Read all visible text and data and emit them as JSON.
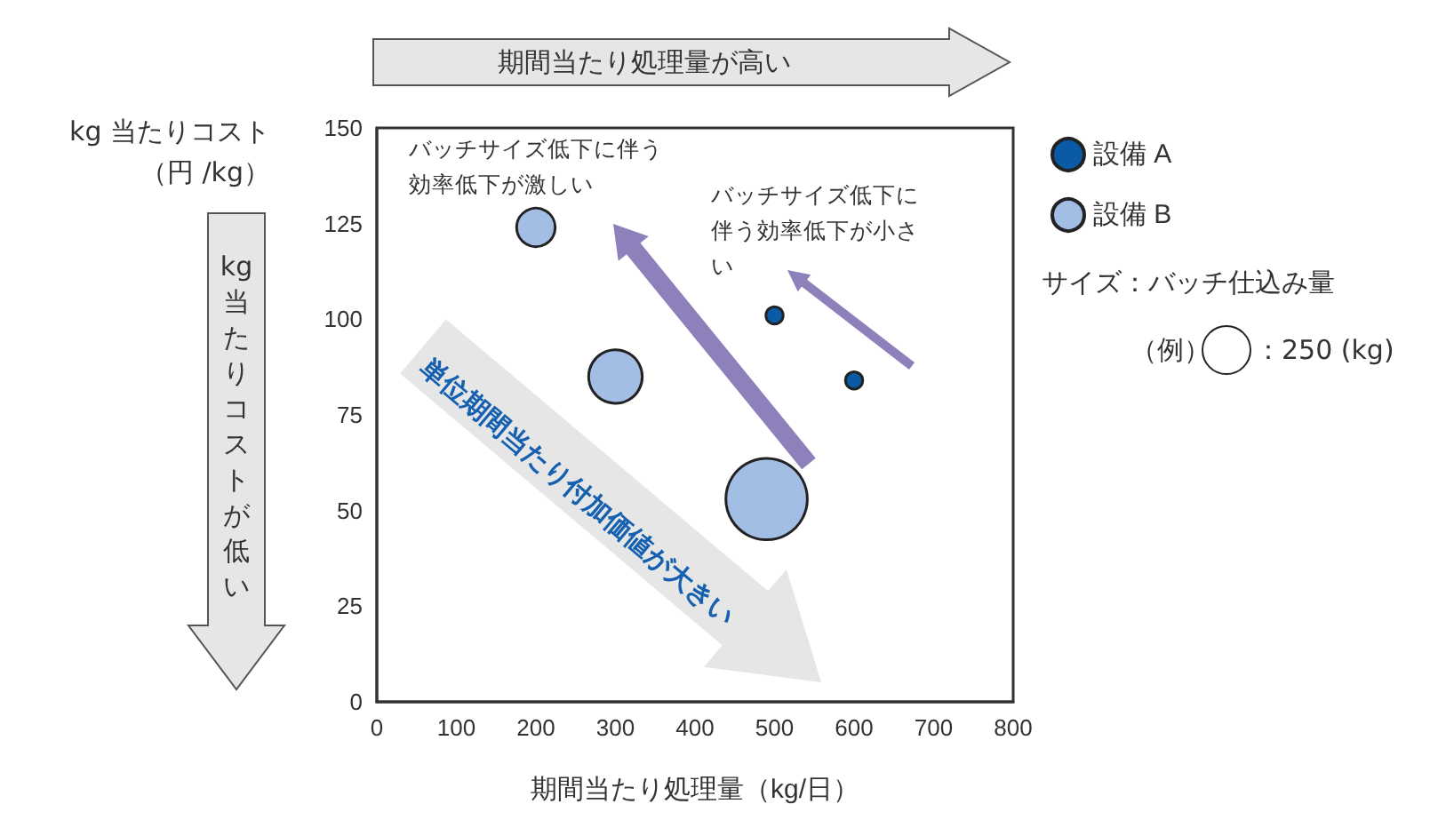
{
  "chart_data": {
    "type": "bubble",
    "xlabel": "期間当たり処理量（kg/日）",
    "ylabel": "kg 当たりコスト（円 /kg）",
    "annotations": [
      "期間当たり処理量が高い",
      "kg 当たりコストが低い",
      "単位期間当たり付加価値が大きい",
      "バッチサイズ低下に伴う効率低下が激しい",
      "バッチサイズ低下に伴う効率低下が小さい",
      "サイズ：バッチ仕込み量",
      "（例）"
    ],
    "series": [
      {
        "name": "設備 A",
        "color": "#0b5aa6",
        "x": [
          500,
          600
        ],
        "values": [
          101,
          84
        ],
        "sizes": [
          30,
          30
        ]
      },
      {
        "name": "設備 B",
        "color": "#a3bee4",
        "x": [
          200,
          300,
          490
        ],
        "values": [
          124,
          85,
          53
        ],
        "sizes": [
          150,
          290,
          670
        ]
      }
    ],
    "size_legend": [
      {
        "value": 250,
        "label": "：250 (kg)"
      }
    ],
    "xlim": [
      0,
      800
    ],
    "xticks": [
      0,
      100,
      200,
      300,
      400,
      500,
      600,
      700,
      800
    ],
    "ylim": [
      0,
      150
    ],
    "yticks": [
      0,
      25,
      50,
      75,
      100,
      125,
      150
    ],
    "grid": false,
    "legend": "right"
  }
}
